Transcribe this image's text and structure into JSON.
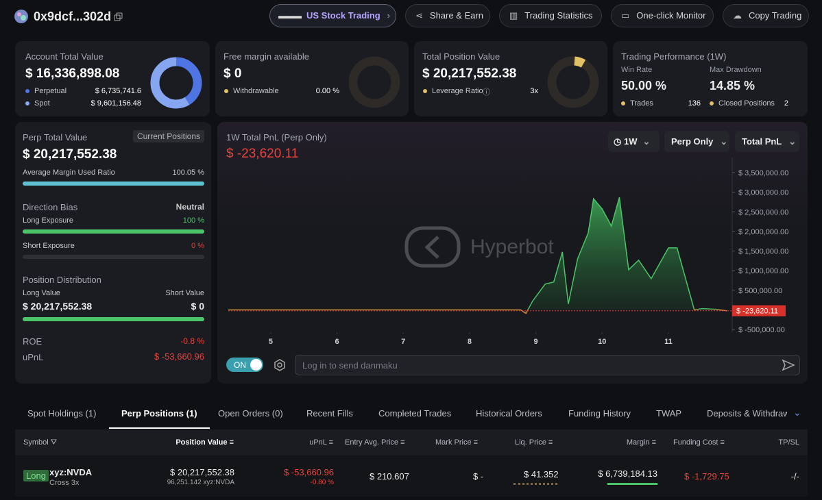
{
  "header": {
    "address": "0x9dcf...302d",
    "nav": [
      "US Stock Trading",
      "Share & Earn",
      "Trading Statistics",
      "One-click Monitor",
      "Copy Trading"
    ]
  },
  "account": {
    "title": "Account Total Value",
    "value": "$ 16,336,898.08",
    "items": [
      {
        "name": "Perpetual",
        "value": 6735741.6,
        "label": "$ 6,735,741.6",
        "color": "#4f74e3"
      },
      {
        "name": "Spot",
        "value": 9601156.48,
        "label": "$ 9,601,156.48",
        "color": "#86a6f2"
      }
    ]
  },
  "free_margin": {
    "title": "Free margin available",
    "value": "$ 0",
    "item": "Withdrawable",
    "item_value": "0.00 %"
  },
  "position": {
    "title": "Total Position Value",
    "value": "$ 20,217,552.38",
    "item": "Leverage Ratio",
    "item_value": "3x"
  },
  "performance": {
    "title": "Trading Performance (1W)",
    "win_rate_label": "Win Rate",
    "win_rate": "50.00 %",
    "drawdown_label": "Max Drawdown",
    "drawdown": "14.85 %",
    "trades_label": "Trades",
    "trades": 136,
    "closed_label": "Closed Positions",
    "closed": 2
  },
  "perp": {
    "title": "Perp Total Value",
    "badge": "Current Positions",
    "value": "$ 20,217,552.38",
    "margin_ratio_label": "Average Margin Used Ratio",
    "margin_ratio": "100.05 %",
    "bias_label": "Direction Bias",
    "bias": "Neutral",
    "long_label": "Long Exposure",
    "long": "100 %",
    "short_label": "Short Exposure",
    "short": "0 %",
    "dist_label": "Position Distribution",
    "long_value_label": "Long Value",
    "long_value": "$ 20,217,552.38",
    "short_value_label": "Short Value",
    "short_value": "$ 0",
    "roe_label": "ROE",
    "roe": "-0.8 %",
    "upnl_label": "uPnL",
    "upnl": "$ -53,660.96"
  },
  "chart_data": {
    "type": "area",
    "title": "1W Total PnL (Perp Only)",
    "current": {
      "value": -23620.11,
      "label": "$ -23,620.11"
    },
    "color": "#4cc46a",
    "negative_color": "#e0893a",
    "x": [
      4.36,
      8.77,
      8.85,
      8.95,
      9.14,
      9.27,
      9.4,
      9.49,
      9.63,
      9.79,
      9.87,
      10.0,
      10.14,
      10.26,
      10.4,
      10.55,
      10.74,
      11.0,
      11.13,
      11.39,
      11.51,
      11.72,
      11.88
    ],
    "values": [
      0,
      0,
      -92000,
      221000,
      657000,
      709000,
      1476000,
      152000,
      1301000,
      1963000,
      2834000,
      2573000,
      2138000,
      2869000,
      1023000,
      1267000,
      796000,
      1580000,
      1580000,
      0,
      30000,
      12000,
      -23620.11
    ],
    "xlim": [
      4.36,
      11.9
    ],
    "xticks": [
      5,
      6,
      7,
      8,
      9,
      10,
      11
    ],
    "ylim": [
      -570000,
      3710000
    ],
    "yticks": [
      {
        "value": -500000,
        "label": "$ -500,000.00"
      },
      {
        "value": 500000,
        "label": "$ 500,000.00"
      },
      {
        "value": 1000000,
        "label": "$ 1,000,000.00"
      },
      {
        "value": 1500000,
        "label": "$ 1,500,000.00"
      },
      {
        "value": 2000000,
        "label": "$ 2,000,000.00"
      },
      {
        "value": 2500000,
        "label": "$ 2,500,000.00"
      },
      {
        "value": 3000000,
        "label": "$ 3,000,000.00"
      },
      {
        "value": 3500000,
        "label": "$ 3,500,000.00"
      }
    ]
  },
  "chart_controls": [
    "1W",
    "Perp Only",
    "Total PnL"
  ],
  "watermark": "Hyperbot",
  "danmaku": {
    "toggle": "ON",
    "placeholder": "Log in to send danmaku"
  },
  "tabs": {
    "items": [
      "Spot Holdings (1)",
      "Perp Positions (1)",
      "Open Orders (0)",
      "Recent Fills",
      "Completed Trades",
      "Historical Orders",
      "Funding History",
      "TWAP",
      "Deposits & Withdrawals"
    ],
    "active": 1
  },
  "table": {
    "columns": [
      "Symbol",
      "Position Value",
      "uPnL",
      "Entry Avg. Price",
      "Mark Price",
      "Liq. Price",
      "Margin",
      "Funding Cost",
      "TP/SL"
    ],
    "rows": [
      {
        "side": "Long",
        "symbol": "xyz:NVDA",
        "margin_mode": "Cross 3x",
        "position_value": "$ 20,217,552.38",
        "size": "96,251.142 xyz:NVDA",
        "upnl": "$ -53,660.96",
        "upnl_pct": "-0.80 %",
        "entry_price": "$ 210.607",
        "mark_price": "$ -",
        "liq_price": "$ 41.352",
        "margin": "$ 6,739,184.13",
        "funding_cost": "$ -1,729.75",
        "tp_sl": "-/-"
      }
    ]
  }
}
